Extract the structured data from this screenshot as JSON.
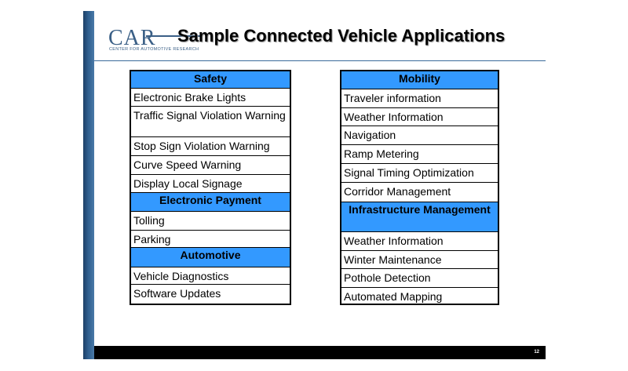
{
  "logo": {
    "text": "CAR",
    "subtitle": "CENTER FOR AUTOMOTIVE RESEARCH"
  },
  "title": "Sample Connected Vehicle Applications",
  "left_table": {
    "rows": [
      {
        "text": "Safety",
        "header": true
      },
      {
        "text": "Electronic Brake Lights"
      },
      {
        "text": "Traffic Signal Violation Warning"
      },
      {
        "text": "Stop Sign Violation Warning"
      },
      {
        "text": "Curve Speed Warning"
      },
      {
        "text": "Display Local Signage"
      },
      {
        "text": "Electronic Payment",
        "header": true
      },
      {
        "text": "Tolling"
      },
      {
        "text": "Parking"
      },
      {
        "text": "Automotive",
        "header": true
      },
      {
        "text": "Vehicle Diagnostics"
      },
      {
        "text": "Software Updates"
      }
    ]
  },
  "right_table": {
    "rows": [
      {
        "text": "Mobility",
        "header": true
      },
      {
        "text": "Traveler information"
      },
      {
        "text": "Weather Information"
      },
      {
        "text": "Navigation"
      },
      {
        "text": "Ramp Metering"
      },
      {
        "text": "Signal Timing Optimization"
      },
      {
        "text": "Corridor Management"
      },
      {
        "text": "Infrastructure Management",
        "header": true
      },
      {
        "text": "Weather Information"
      },
      {
        "text": "Winter Maintenance"
      },
      {
        "text": "Pothole Detection"
      },
      {
        "text": "Automated Mapping"
      }
    ]
  },
  "footer": {
    "page_number": "12"
  },
  "colors": {
    "header_fill": "#3399ff",
    "accent": "#3a5f86",
    "footer": "#000000"
  }
}
